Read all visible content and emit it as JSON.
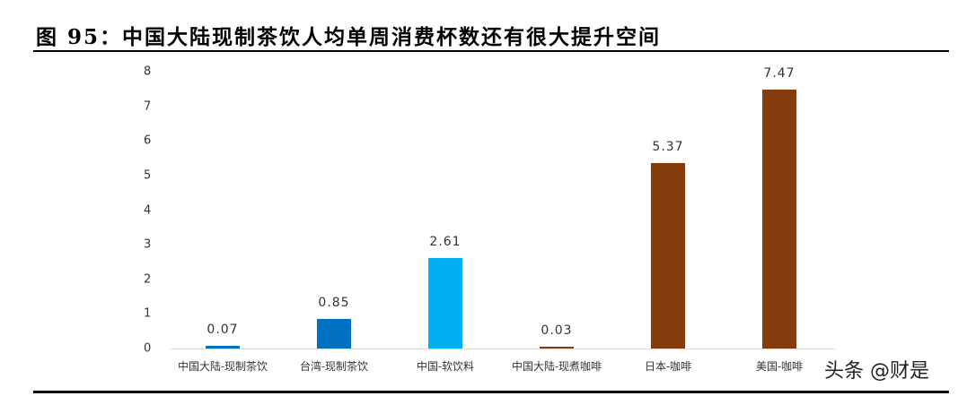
{
  "header": {
    "title": "图 95：中国大陆现制茶饮人均单周消费杯数还有很大提升空间"
  },
  "watermark": "头条 @财是",
  "chart_data": {
    "type": "bar",
    "title": "图 95：中国大陆现制茶饮人均单周消费杯数还有很大提升空间",
    "xlabel": "",
    "ylabel": "",
    "ylim": [
      0,
      8
    ],
    "yticks": [
      "0",
      "1",
      "2",
      "3",
      "4",
      "5",
      "6",
      "7",
      "8"
    ],
    "grid": false,
    "legend": null,
    "categories": [
      "中国大陆-现制茶饮",
      "台湾-现制茶饮",
      "中国-软饮料",
      "中国大陆-现煮咖啡",
      "日本-咖啡",
      "美国-咖啡"
    ],
    "values": [
      0.07,
      0.85,
      2.61,
      0.03,
      5.37,
      7.47
    ],
    "value_labels": [
      "0.07",
      "0.85",
      "2.61",
      "0.03",
      "5.37",
      "7.47"
    ],
    "colors": [
      "#0070c0",
      "#0070c0",
      "#00b0f0",
      "#843c0c",
      "#843c0c",
      "#843c0c"
    ]
  }
}
